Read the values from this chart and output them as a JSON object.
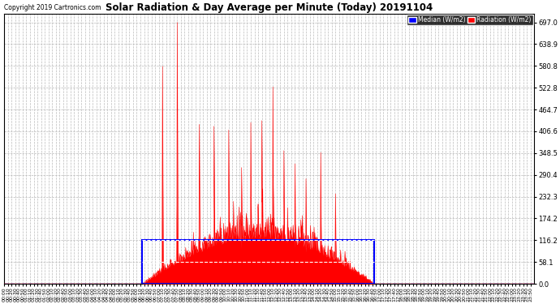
{
  "title": "Solar Radiation & Day Average per Minute (Today) 20191104",
  "copyright": "Copyright 2019 Cartronics.com",
  "yticks": [
    0.0,
    58.1,
    116.2,
    174.2,
    232.3,
    290.4,
    348.5,
    406.6,
    464.7,
    522.8,
    580.8,
    638.9,
    697.0
  ],
  "ymax": 720,
  "ymin": 0,
  "bg_color": "#ffffff",
  "plot_bg": "#ffffff",
  "grid_color": "#bbbbbb",
  "radiation_color": "#ff0000",
  "median_color": "#0000ff",
  "legend_median_bg": "#0000ff",
  "legend_radiation_bg": "#ff0000",
  "box_color": "#0000ff",
  "blue_dashed_bottom": "#0000ff",
  "total_minutes": 1440,
  "sunrise_minute": 375,
  "sunset_minute": 1005,
  "median_val": 116.2,
  "dashed1": 58.1,
  "dashed2": 116.2,
  "spike_times": [
    430,
    470,
    530,
    570,
    610,
    645,
    670,
    700,
    730,
    760,
    790,
    820,
    860,
    900
  ],
  "spike_heights": [
    580,
    697,
    425,
    420,
    410,
    310,
    430,
    435,
    525,
    355,
    320,
    280,
    350,
    240
  ]
}
